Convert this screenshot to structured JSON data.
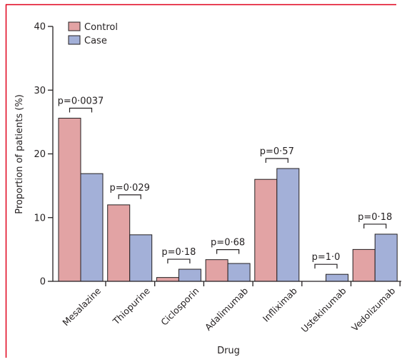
{
  "colors": {
    "frame": "#e0001b",
    "control": "#e2a3a4",
    "case": "#a3b0d8",
    "ink": "#231f20"
  },
  "chart_data": {
    "type": "bar",
    "title": "",
    "xlabel": "Drug",
    "ylabel": "Proportion of patients (%)",
    "ylim": [
      0,
      40
    ],
    "yticks": [
      {
        "value": 0,
        "label": "0"
      },
      {
        "value": 10,
        "label": "10"
      },
      {
        "value": 20,
        "label": "20"
      },
      {
        "value": 30,
        "label": "30"
      },
      {
        "value": 40,
        "label": "40"
      }
    ],
    "categories": [
      "Mesalazine",
      "Thiopurine",
      "Ciclosporin",
      "Adalimumab",
      "Infliximab",
      "Ustekinumab",
      "Vedolizumab"
    ],
    "series": [
      {
        "name": "Control",
        "color": "#e2a3a4",
        "values": [
          25.6,
          12.0,
          0.6,
          3.4,
          16.0,
          0.0,
          5.0
        ]
      },
      {
        "name": "Case",
        "color": "#a3b0d8",
        "values": [
          16.9,
          7.3,
          1.9,
          2.8,
          17.7,
          1.1,
          7.4
        ]
      }
    ],
    "annotations": [
      "p=0·0037",
      "p=0·029",
      "p=0·18",
      "p=0·68",
      "p=0·57",
      "p=1·0",
      "p=0·18"
    ],
    "grid": false,
    "legend": {
      "position": "top-left",
      "entries": [
        "Control",
        "Case"
      ]
    }
  }
}
